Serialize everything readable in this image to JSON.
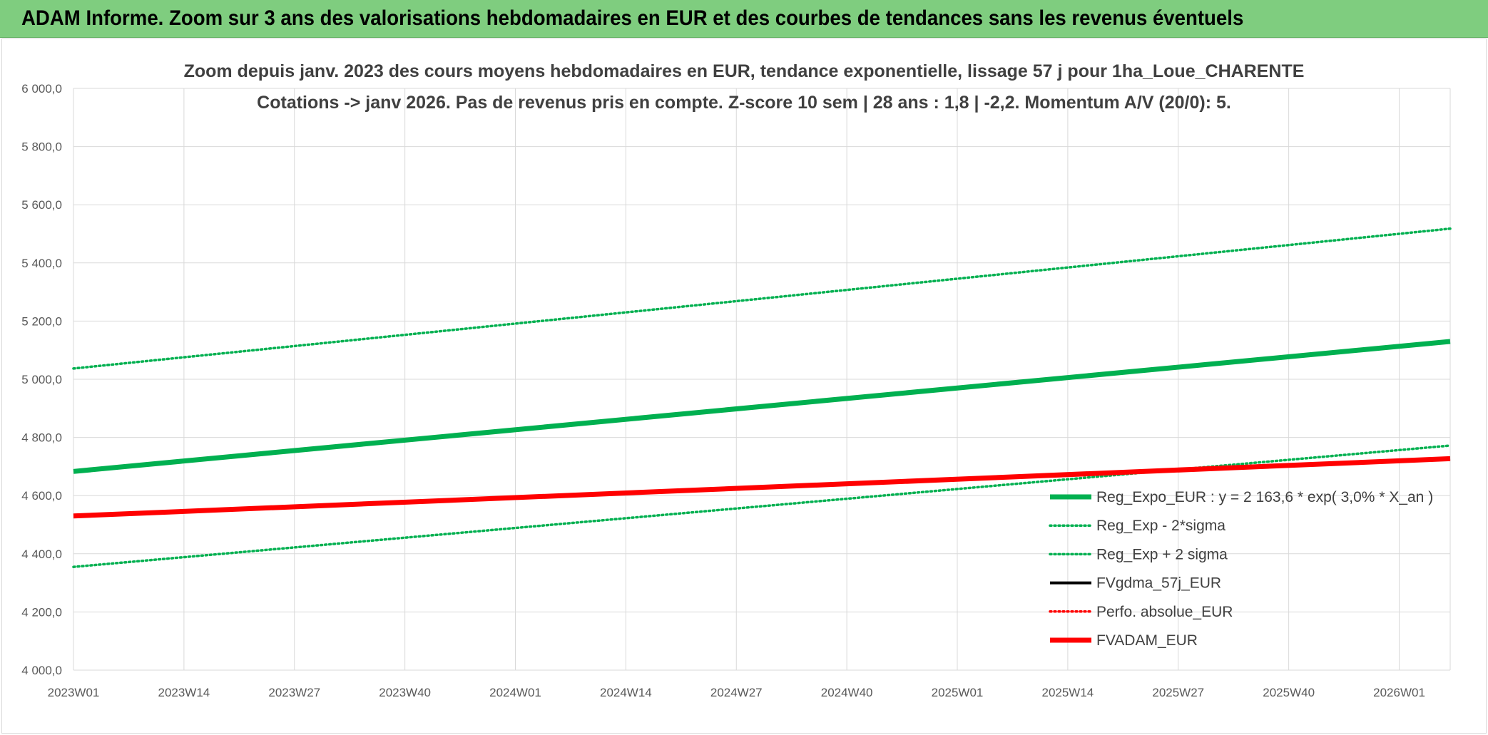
{
  "header": {
    "title": "ADAM Informe. Zoom sur 3 ans des valorisations hebdomadaires en EUR et des courbes de tendances sans les revenus éventuels"
  },
  "chart_data": {
    "type": "line",
    "title_line1": "Zoom depuis janv. 2023 des cours moyens hebdomadaires en EUR, tendance exponentielle, lissage 57 j pour 1ha_Loue_CHARENTE",
    "title_line2": "Cotations -> janv 2026. Pas de revenus pris en compte. Z-score 10 sem | 28 ans : 1,8 | -2,2. Momentum A/V (20/0): 5.",
    "xlabel": "",
    "ylabel": "",
    "ylim": [
      4000,
      6000
    ],
    "y_ticks": [
      "4 000,0",
      "4 200,0",
      "4 400,0",
      "4 600,0",
      "4 800,0",
      "5 000,0",
      "5 200,0",
      "5 400,0",
      "5 600,0",
      "5 800,0",
      "6 000,0"
    ],
    "x_ticks": [
      "2023W01",
      "2023W14",
      "2023W27",
      "2023W40",
      "2024W01",
      "2024W14",
      "2024W27",
      "2024W40",
      "2025W01",
      "2025W14",
      "2025W27",
      "2025W40",
      "2026W01"
    ],
    "x_range_weeks": [
      0,
      162
    ],
    "grid": true,
    "legend_position": "right",
    "series": [
      {
        "name": "Reg_Expo_EUR : y = 2 163,6 * exp( 3,0% *  X_an )",
        "style": "solid-thick",
        "color": "#00b050",
        "points": [
          [
            0,
            4683
          ],
          [
            162,
            5130
          ]
        ]
      },
      {
        "name": "Reg_Exp - 2*sigma",
        "style": "dotted",
        "color": "#00b050",
        "points": [
          [
            0,
            4355
          ],
          [
            162,
            4772
          ]
        ]
      },
      {
        "name": "Reg_Exp + 2 sigma",
        "style": "dotted",
        "color": "#00b050",
        "points": [
          [
            0,
            5037
          ],
          [
            162,
            5518
          ]
        ]
      },
      {
        "name": "FVgdma_57j_EUR",
        "style": "solid",
        "color": "#000000",
        "points": [
          [
            0,
            4530
          ],
          [
            162,
            4727
          ]
        ]
      },
      {
        "name": "Perfo. absolue_EUR",
        "style": "dotted",
        "color": "#ff0000",
        "points": []
      },
      {
        "name": "FVADAM_EUR",
        "style": "solid-thick",
        "color": "#ff0000",
        "points": [
          [
            0,
            4530
          ],
          [
            162,
            4727
          ]
        ]
      }
    ]
  }
}
